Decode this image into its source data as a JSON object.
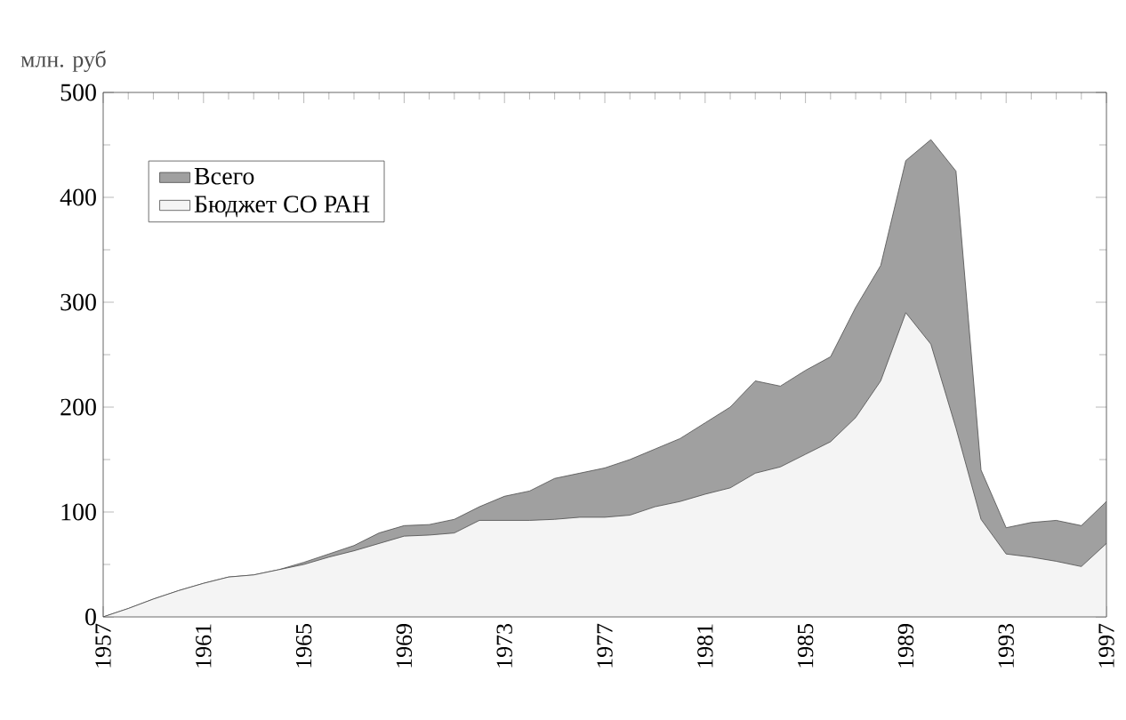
{
  "chart_data": {
    "type": "area",
    "ylabel": "млн. руб",
    "x": [
      1957,
      1958,
      1959,
      1960,
      1961,
      1962,
      1963,
      1964,
      1965,
      1966,
      1967,
      1968,
      1969,
      1970,
      1971,
      1972,
      1973,
      1974,
      1975,
      1976,
      1977,
      1978,
      1979,
      1980,
      1981,
      1982,
      1983,
      1984,
      1985,
      1986,
      1987,
      1988,
      1989,
      1990,
      1991,
      1992,
      1993,
      1994,
      1995,
      1996,
      1997
    ],
    "series": [
      {
        "name": "Всего",
        "color": "#a0a0a0",
        "values": [
          0,
          8,
          17,
          25,
          32,
          38,
          40,
          45,
          52,
          60,
          68,
          80,
          87,
          88,
          93,
          105,
          115,
          120,
          132,
          137,
          142,
          150,
          160,
          170,
          185,
          200,
          225,
          220,
          235,
          248,
          295,
          335,
          435,
          455,
          425,
          140,
          85,
          90,
          92,
          87,
          110
        ]
      },
      {
        "name": "Бюджет СО РАН",
        "color": "#f4f4f4",
        "values": [
          0,
          8,
          17,
          25,
          32,
          38,
          40,
          45,
          50,
          57,
          63,
          70,
          77,
          78,
          80,
          92,
          92,
          92,
          93,
          95,
          95,
          97,
          105,
          110,
          117,
          123,
          137,
          143,
          155,
          167,
          190,
          225,
          290,
          260,
          180,
          93,
          60,
          57,
          53,
          48,
          70
        ]
      }
    ],
    "xlim": [
      1957,
      1997
    ],
    "xticks": [
      1957,
      1961,
      1965,
      1969,
      1973,
      1977,
      1981,
      1985,
      1989,
      1993,
      1997
    ],
    "ylim": [
      0,
      500
    ],
    "yticks": [
      0,
      100,
      200,
      300,
      400,
      500
    ],
    "legend": "top left",
    "grid": false
  }
}
